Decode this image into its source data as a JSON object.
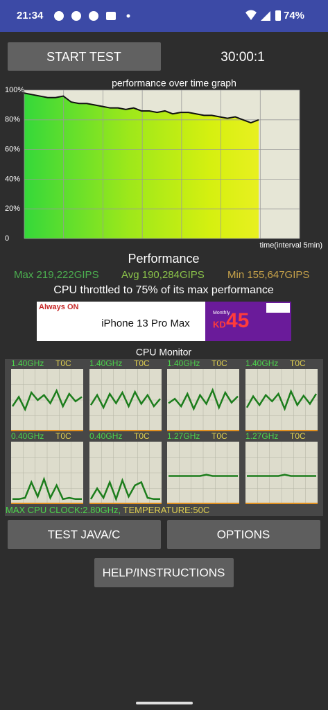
{
  "status_bar": {
    "time": "21:34",
    "battery": "74%"
  },
  "start_button": "START TEST",
  "timer": "30:00:1",
  "graph": {
    "title": "performance over time graph",
    "y_labels": [
      "100%",
      "80%",
      "60%",
      "40%",
      "20%",
      "0"
    ],
    "x_label": "time(interval 5min)",
    "values": [
      98,
      97,
      96,
      95,
      95,
      96,
      92,
      91,
      91,
      90,
      89,
      88,
      88,
      87,
      88,
      86,
      86,
      85,
      86,
      84,
      85,
      85,
      84,
      83,
      83,
      82,
      81,
      82,
      80,
      78,
      80
    ]
  },
  "performance": {
    "heading": "Performance",
    "max": "Max 219,222GIPS",
    "avg": "Avg 190,284GIPS",
    "min": "Min 155,647GIPS",
    "throttle_note": "CPU throttled to 75% of its max performance"
  },
  "ad": {
    "badge": "Always ON",
    "product": "iPhone 13 Pro Max",
    "offer": "Monthly",
    "currency": "KD",
    "price": "45"
  },
  "cpu_monitor": {
    "title": "CPU Monitor",
    "cores": [
      {
        "clock": "1.40GHz",
        "temp": "T0C",
        "values": [
          40,
          55,
          35,
          62,
          50,
          58,
          45,
          65,
          40,
          60,
          48,
          55
        ]
      },
      {
        "clock": "1.40GHz",
        "temp": "T0C",
        "values": [
          42,
          58,
          38,
          60,
          45,
          62,
          40,
          63,
          44,
          58,
          40,
          52
        ]
      },
      {
        "clock": "1.40GHz",
        "temp": "T0C",
        "values": [
          45,
          52,
          40,
          60,
          36,
          58,
          44,
          66,
          38,
          62,
          46,
          56
        ]
      },
      {
        "clock": "1.40GHz",
        "temp": "T0C",
        "values": [
          38,
          56,
          42,
          58,
          48,
          60,
          36,
          64,
          42,
          57,
          44,
          60
        ]
      },
      {
        "clock": "0.40GHz",
        "temp": "T0C",
        "values": [
          8,
          8,
          10,
          35,
          12,
          40,
          10,
          30,
          8,
          10,
          8,
          8
        ]
      },
      {
        "clock": "0.40GHz",
        "temp": "T0C",
        "values": [
          8,
          25,
          10,
          35,
          8,
          38,
          12,
          30,
          35,
          10,
          8,
          8
        ]
      },
      {
        "clock": "1.27GHz",
        "temp": "T0C",
        "values": [
          45,
          45,
          45,
          45,
          45,
          45,
          47,
          45,
          45,
          45,
          45,
          45
        ]
      },
      {
        "clock": "1.27GHz",
        "temp": "T0C",
        "values": [
          45,
          45,
          45,
          45,
          45,
          45,
          47,
          45,
          45,
          45,
          45,
          45
        ]
      }
    ],
    "max_clock": "MAX CPU CLOCK:2.80GHz,",
    "temperature": "TEMPERATURE:50C"
  },
  "buttons": [
    "TEST JAVA/C",
    "OPTIONS",
    "HELP/INSTRUCTIONS"
  ]
}
